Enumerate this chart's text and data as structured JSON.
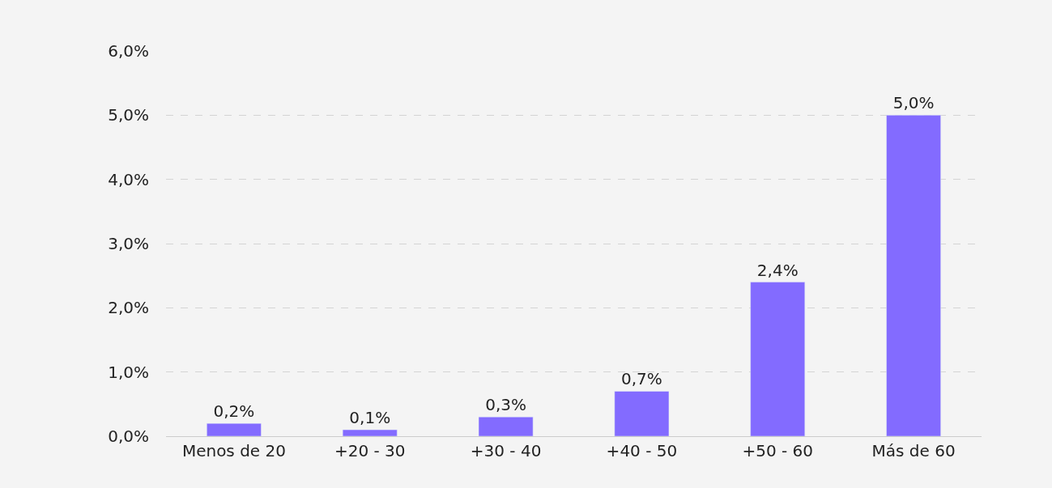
{
  "chart_data": {
    "type": "bar",
    "categories": [
      "Menos de 20",
      "+20 - 30",
      "+30 - 40",
      "+40 - 50",
      "+50 - 60",
      "Más de 60"
    ],
    "values": [
      0.2,
      0.1,
      0.3,
      0.7,
      2.4,
      5.0
    ],
    "value_labels": [
      "0,2%",
      "0,1%",
      "0,3%",
      "0,7%",
      "2,4%",
      "5,0%"
    ],
    "color": "#836bff",
    "ylim": [
      0,
      6
    ],
    "yticks": [
      {
        "value": 0,
        "label": "0,0%"
      },
      {
        "value": 1,
        "label": "1,0%"
      },
      {
        "value": 2,
        "label": "2,0%"
      },
      {
        "value": 3,
        "label": "3,0%"
      },
      {
        "value": 4,
        "label": "4,0%"
      },
      {
        "value": 5,
        "label": "5,0%"
      },
      {
        "value": 6,
        "label": "6,0%"
      }
    ],
    "grid": "y"
  }
}
